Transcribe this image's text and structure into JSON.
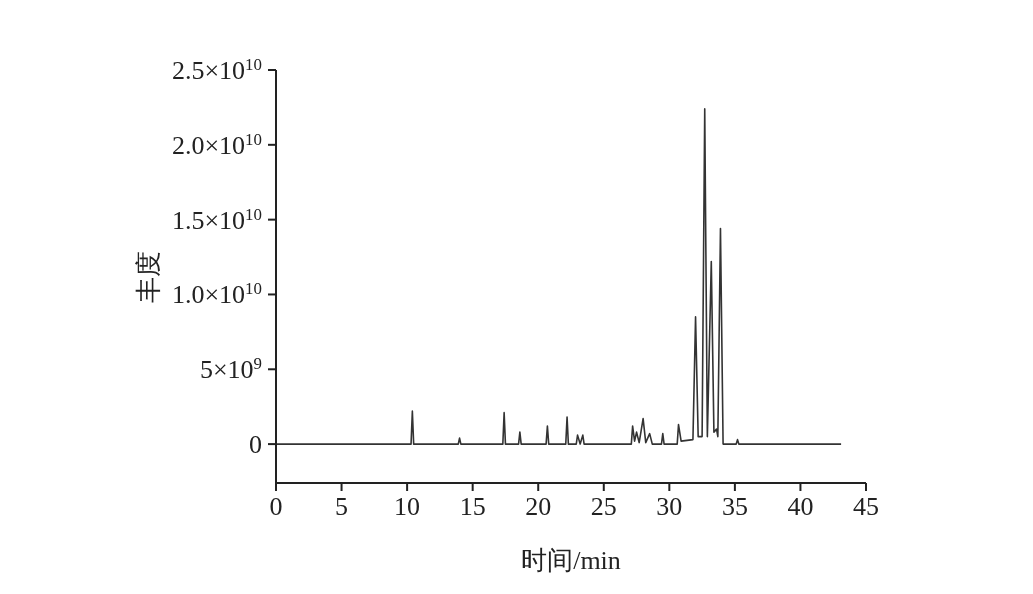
{
  "chart_data": {
    "type": "line",
    "xlabel": "时间/min",
    "ylabel": "丰度",
    "x": [
      0,
      10.3,
      10.4,
      10.5,
      13.9,
      14.0,
      14.1,
      17.3,
      17.4,
      17.5,
      18.5,
      18.6,
      18.7,
      20.6,
      20.7,
      20.8,
      22.1,
      22.2,
      22.3,
      22.9,
      23.0,
      23.2,
      23.4,
      23.5,
      27.1,
      27.2,
      27.35,
      27.5,
      27.7,
      28.0,
      28.2,
      28.5,
      28.7,
      29.4,
      29.5,
      29.6,
      30.6,
      30.7,
      30.9,
      31.8,
      32.0,
      32.2,
      32.5,
      32.7,
      32.9,
      33.2,
      33.4,
      33.6,
      33.7,
      33.9,
      34.1,
      35.1,
      35.2,
      35.3,
      43.1
    ],
    "series": [
      {
        "color": "#333333",
        "values": [
          0,
          0,
          2200000000,
          0,
          0,
          400000000,
          0,
          0,
          2100000000,
          0,
          0,
          800000000,
          0,
          0,
          1200000000,
          0,
          0,
          1800000000,
          0,
          0,
          600000000,
          0,
          600000000,
          0,
          0,
          1200000000,
          200000000,
          800000000,
          100000000,
          1700000000,
          100000000,
          700000000,
          0,
          0,
          700000000,
          0,
          0,
          1300000000,
          200000000,
          300000000,
          8500000000,
          500000000,
          500000000,
          22400000000,
          500000000,
          12200000000,
          800000000,
          1000000000,
          500000000,
          14400000000,
          0,
          0,
          300000000,
          0,
          0
        ]
      }
    ],
    "xlim": [
      0,
      45
    ],
    "xticks": [
      0,
      5,
      10,
      15,
      20,
      25,
      30,
      35,
      40,
      45
    ],
    "ylim": [
      -2600000000,
      25000000000
    ],
    "yticks": [
      0,
      {
        "value": 5000000000,
        "label": "5×10$^{9}$"
      },
      {
        "value": 10000000000,
        "label": "1.0×10$^{10}$"
      },
      {
        "value": 15000000000,
        "label": "1.5×10$^{10}$"
      },
      {
        "value": 20000000000,
        "label": "2.0×10$^{10}$"
      },
      {
        "value": 25000000000,
        "label": "2.5×10$^{10}$"
      }
    ],
    "grid": false,
    "legend": false,
    "marker": "none",
    "line_style": "solid"
  }
}
